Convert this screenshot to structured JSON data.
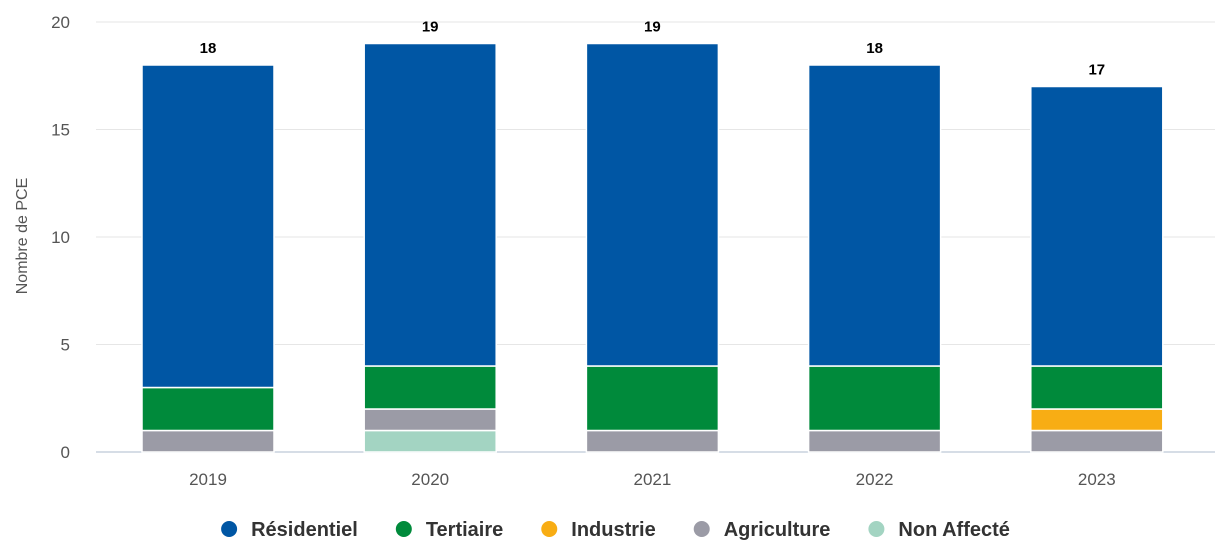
{
  "chart_data": {
    "type": "bar",
    "stacked": true,
    "categories": [
      "2019",
      "2020",
      "2021",
      "2022",
      "2023"
    ],
    "ylabel": "Nombre de PCE",
    "ylim": [
      0,
      20
    ],
    "yticks": [
      0,
      5,
      10,
      15,
      20
    ],
    "grid": true,
    "legend_position": "bottom",
    "totals": [
      18,
      19,
      19,
      18,
      17
    ],
    "series": [
      {
        "name": "Non Affecté",
        "color": "#a3d4c2",
        "values": [
          0,
          1,
          0,
          0,
          0
        ]
      },
      {
        "name": "Agriculture",
        "color": "#9b9ba6",
        "values": [
          1,
          1,
          1,
          1,
          1
        ]
      },
      {
        "name": "Industrie",
        "color": "#f8ad14",
        "values": [
          0,
          0,
          0,
          0,
          1
        ]
      },
      {
        "name": "Tertiaire",
        "color": "#008a3b",
        "values": [
          2,
          2,
          3,
          3,
          2
        ]
      },
      {
        "name": "Résidentiel",
        "color": "#0056a4",
        "values": [
          15,
          15,
          15,
          14,
          13
        ]
      }
    ],
    "legend_order": [
      "Résidentiel",
      "Tertiaire",
      "Industrie",
      "Agriculture",
      "Non Affecté"
    ]
  }
}
